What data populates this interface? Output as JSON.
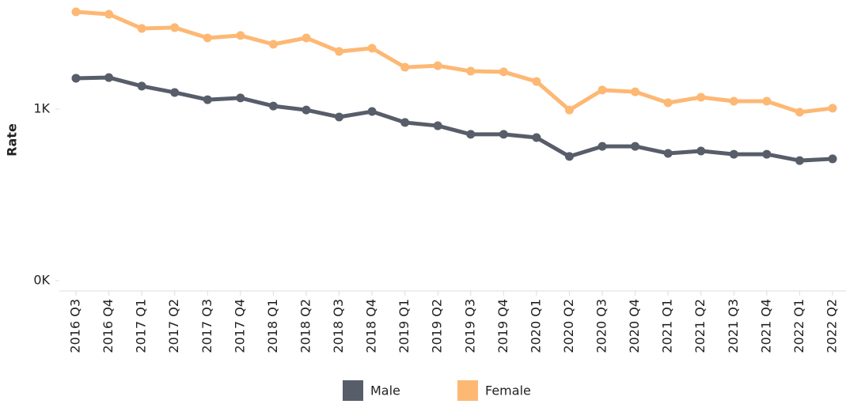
{
  "chart_data": {
    "type": "line",
    "y_label": "Rate",
    "categories": [
      "2016 Q3",
      "2016 Q4",
      "2017 Q1",
      "2017 Q2",
      "2017 Q3",
      "2017 Q4",
      "2018 Q1",
      "2018 Q2",
      "2018 Q3",
      "2018 Q4",
      "2019 Q1",
      "2019 Q2",
      "2019 Q3",
      "2019 Q4",
      "2020 Q1",
      "2020 Q2",
      "2020 Q3",
      "2020 Q4",
      "2021 Q1",
      "2021 Q2",
      "2021 Q3",
      "2021 Q4",
      "2022 Q1",
      "2022 Q2"
    ],
    "series": [
      {
        "name": "Male",
        "color": "#575d69",
        "values": [
          1180,
          1184,
          1134,
          1097,
          1055,
          1065,
          1018,
          995,
          954,
          986,
          922,
          903,
          853,
          853,
          834,
          724,
          783,
          783,
          742,
          756,
          737,
          737,
          700,
          710
        ]
      },
      {
        "name": "Female",
        "color": "#fdb874",
        "values": [
          1567,
          1553,
          1470,
          1475,
          1415,
          1429,
          1378,
          1415,
          1336,
          1355,
          1244,
          1253,
          1221,
          1217,
          1161,
          995,
          1111,
          1101,
          1037,
          1069,
          1046,
          1046,
          982,
          1005
        ]
      }
    ],
    "ylim": [
      0,
      1636
    ],
    "yticks": [
      {
        "value": 0,
        "label": "0K"
      },
      {
        "value": 1000,
        "label": "1K"
      }
    ],
    "legend": "bottom"
  }
}
